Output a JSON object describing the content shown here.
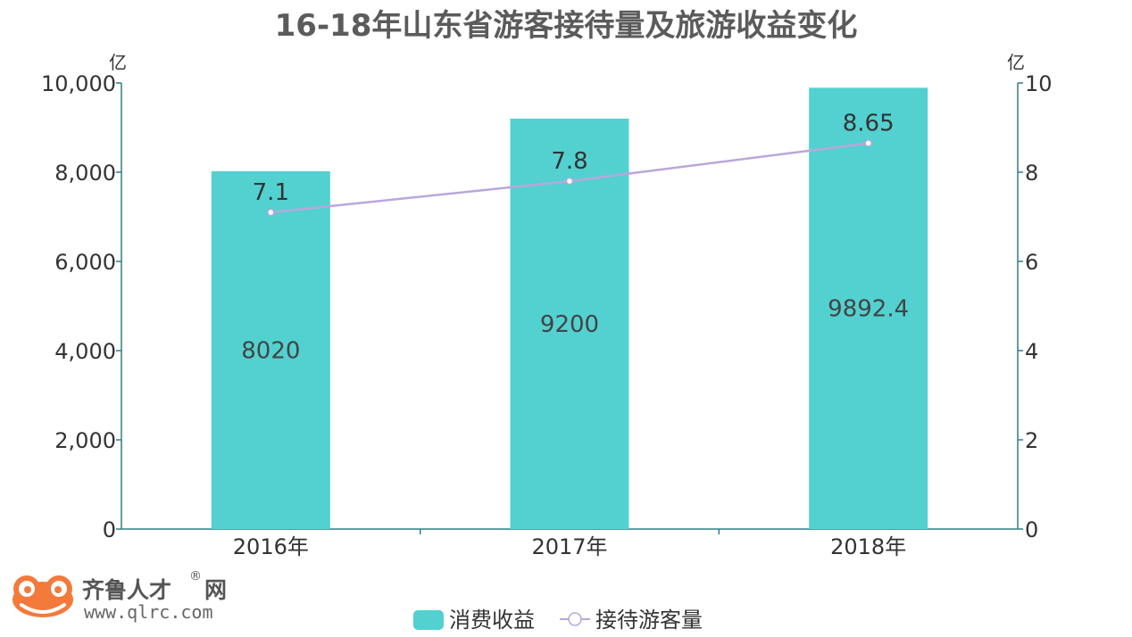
{
  "chart_data": {
    "type": "bar",
    "title": "16-18年山东省游客接待量及旅游收益变化",
    "categories": [
      "2016年",
      "2017年",
      "2018年"
    ],
    "series": [
      {
        "name": "消费收益",
        "type": "bar",
        "axis": "left",
        "values": [
          8020,
          9200,
          9892.4
        ],
        "labels": [
          "8020",
          "9200",
          "9892.4"
        ],
        "color": "#52d1d0"
      },
      {
        "name": "接待游客量",
        "type": "line",
        "axis": "right",
        "values": [
          7.1,
          7.8,
          8.65
        ],
        "labels": [
          "7.1",
          "7.8",
          "8.65"
        ],
        "color": "#b9a7dc"
      }
    ],
    "left_axis": {
      "unit": "亿",
      "ylim": [
        0,
        10000
      ],
      "ticks": [
        0,
        2000,
        4000,
        6000,
        8000,
        10000
      ],
      "tick_labels": [
        "0",
        "2,000",
        "4,000",
        "6,000",
        "8,000",
        "10,000"
      ]
    },
    "right_axis": {
      "unit": "亿",
      "ylim": [
        0,
        10
      ],
      "ticks": [
        0,
        2,
        4,
        6,
        8,
        10
      ],
      "tick_labels": [
        "0",
        "2",
        "4",
        "6",
        "8",
        "10"
      ]
    },
    "grid": false,
    "legend_position": "bottom"
  },
  "logo": {
    "brand": "齐鲁人才",
    "suffix": "网",
    "reg": "®",
    "url": "www.qlrc.com"
  },
  "colors": {
    "axis": "#2f7f83",
    "title": "#5b5b5b",
    "logo_frog": "#f47a3c"
  }
}
